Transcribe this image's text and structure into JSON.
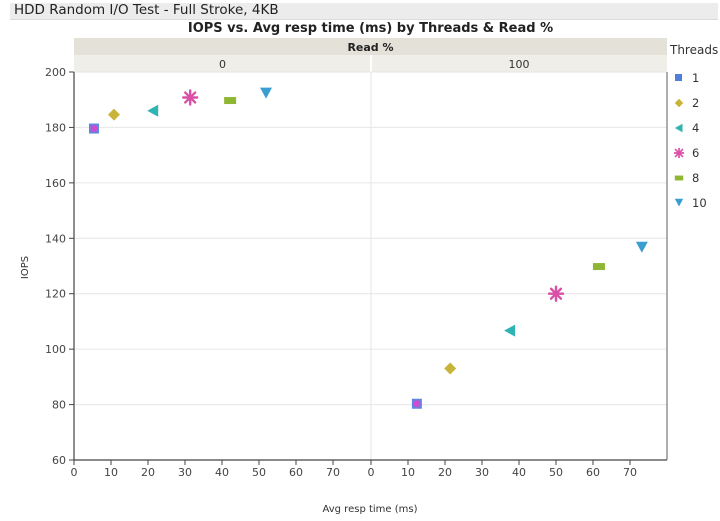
{
  "window": {
    "title": "HDD Random I/O Test - Full Stroke, 4KB"
  },
  "chart_data": {
    "type": "scatter",
    "title": "IOPS vs. Avg resp time (ms) by Threads & Read %",
    "xlabel": "Avg resp time (ms)",
    "ylabel": "IOPS",
    "facet_label": "Read %",
    "panels": [
      "0",
      "100"
    ],
    "xlim": [
      0,
      80
    ],
    "ylim": [
      60,
      200
    ],
    "xticks": [
      0,
      10,
      20,
      30,
      40,
      50,
      60,
      70
    ],
    "yticks": [
      60,
      80,
      100,
      120,
      140,
      160,
      180,
      200
    ],
    "grid": true,
    "legend_title": "Threads",
    "legend_position": "right",
    "series": [
      {
        "name": "1",
        "marker": "square",
        "color": "#4f7fd9",
        "points": [
          {
            "panel": "0",
            "x": 5.4,
            "y": 179.6
          },
          {
            "panel": "100",
            "x": 12.4,
            "y": 80.3
          }
        ]
      },
      {
        "name": "2",
        "marker": "diamond",
        "color": "#c9b43a",
        "points": [
          {
            "panel": "0",
            "x": 10.8,
            "y": 184.6
          },
          {
            "panel": "100",
            "x": 21.4,
            "y": 93.0
          }
        ]
      },
      {
        "name": "4",
        "marker": "triangle-left",
        "color": "#2fb3b3",
        "points": [
          {
            "panel": "0",
            "x": 21.4,
            "y": 186.0
          },
          {
            "panel": "100",
            "x": 37.6,
            "y": 106.7
          }
        ]
      },
      {
        "name": "6",
        "marker": "asterisk",
        "color": "#d94fa8",
        "points": [
          {
            "panel": "0",
            "x": 31.4,
            "y": 190.8
          },
          {
            "panel": "100",
            "x": 50.0,
            "y": 120.0
          }
        ]
      },
      {
        "name": "8",
        "marker": "rect",
        "color": "#8fb733",
        "points": [
          {
            "panel": "0",
            "x": 42.2,
            "y": 189.7
          },
          {
            "panel": "100",
            "x": 61.6,
            "y": 129.8
          }
        ]
      },
      {
        "name": "10",
        "marker": "triangle-down",
        "color": "#3a9fd0",
        "points": [
          {
            "panel": "0",
            "x": 51.9,
            "y": 192.2
          },
          {
            "panel": "100",
            "x": 73.2,
            "y": 136.6
          }
        ]
      }
    ]
  }
}
